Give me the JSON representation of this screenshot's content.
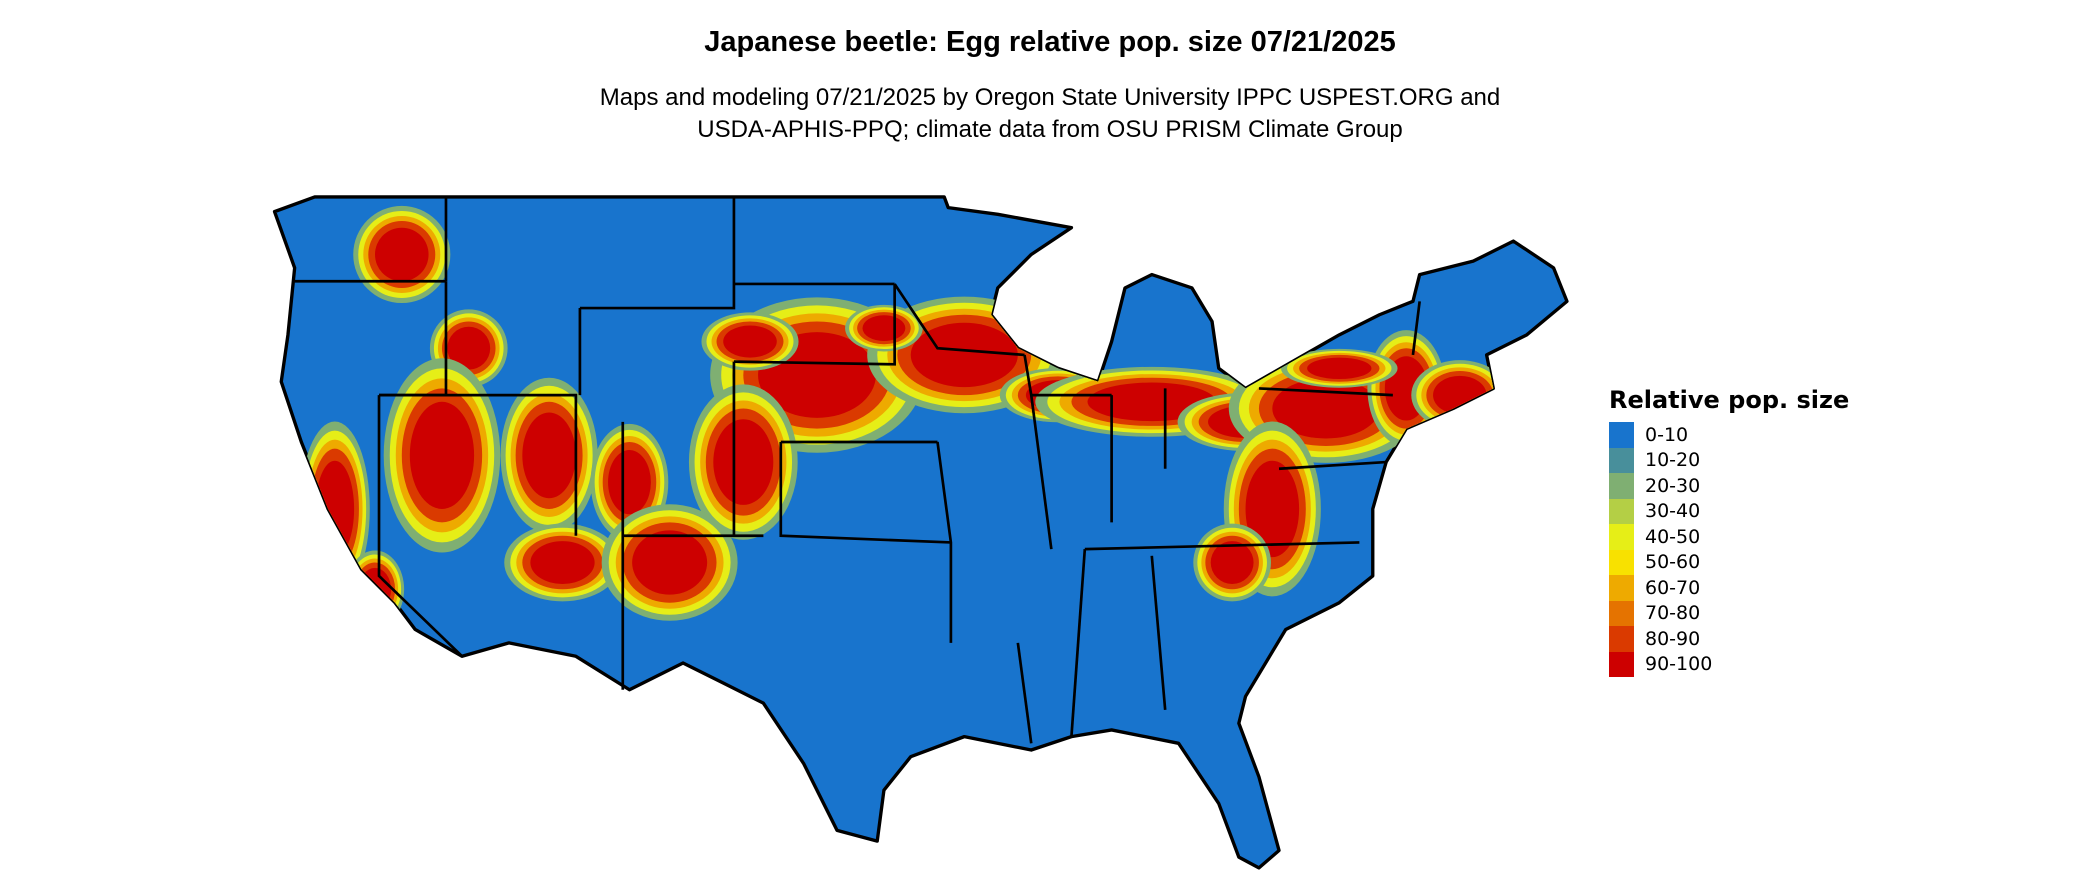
{
  "title": "Japanese beetle: Egg relative pop. size 07/21/2025",
  "subtitle_lines": [
    "Maps and modeling 07/21/2025 by Oregon State University IPPC USPEST.ORG and",
    "USDA-APHIS-PPQ; climate data from OSU PRISM Climate Group"
  ],
  "map": {
    "region": "Contiguous United States",
    "base_color": "#1874CD",
    "border_color": "#000000"
  },
  "legend": {
    "title": "Relative pop. size",
    "items": [
      {
        "label": "0-10",
        "color": "#1874CD"
      },
      {
        "label": "10-20",
        "color": "#488F9B"
      },
      {
        "label": "20-30",
        "color": "#7FAF72"
      },
      {
        "label": "30-40",
        "color": "#B4CF45"
      },
      {
        "label": "40-50",
        "color": "#E6EE17"
      },
      {
        "label": "50-60",
        "color": "#F8E100"
      },
      {
        "label": "60-70",
        "color": "#EEAA00"
      },
      {
        "label": "70-80",
        "color": "#E57300"
      },
      {
        "label": "80-90",
        "color": "#DA3A00"
      },
      {
        "label": "90-100",
        "color": "#CD0000"
      }
    ]
  }
}
